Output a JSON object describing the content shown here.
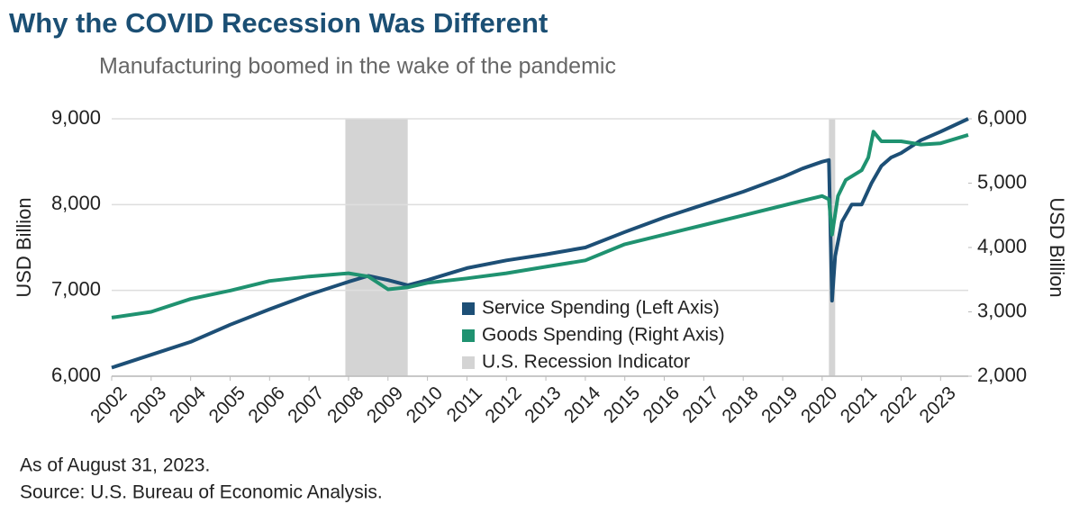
{
  "chart_data": {
    "type": "line",
    "title": "Why the COVID Recession Was Different",
    "subtitle": "Manufacturing boomed in the wake of the pandemic",
    "ylabel": "USD Billion",
    "y2label": "USD Billion",
    "xlim": [
      2002,
      2023.7
    ],
    "xticks": [
      2002,
      2003,
      2004,
      2005,
      2006,
      2007,
      2008,
      2009,
      2010,
      2011,
      2012,
      2013,
      2014,
      2015,
      2016,
      2017,
      2018,
      2019,
      2020,
      2021,
      2022,
      2023
    ],
    "ylim": [
      6000,
      9000
    ],
    "yticks": [
      {
        "value": 6000,
        "label": "6,000"
      },
      {
        "value": 7000,
        "label": "7,000"
      },
      {
        "value": 8000,
        "label": "8,000"
      },
      {
        "value": 9000,
        "label": "9,000"
      }
    ],
    "y2lim": [
      2000,
      6000
    ],
    "y2ticks": [
      {
        "value": 2000,
        "label": "2,000"
      },
      {
        "value": 3000,
        "label": "3,000"
      },
      {
        "value": 4000,
        "label": "4,000"
      },
      {
        "value": 5000,
        "label": "5,000"
      },
      {
        "value": 6000,
        "label": "6,000"
      }
    ],
    "grid": true,
    "series": [
      {
        "name": "Service Spending (Left Axis)",
        "color": "#1d4f76",
        "axis": "y",
        "x": [
          2002,
          2003,
          2004,
          2005,
          2006,
          2007,
          2008,
          2008.5,
          2009,
          2009.5,
          2010,
          2011,
          2012,
          2013,
          2014,
          2015,
          2016,
          2017,
          2018,
          2019,
          2019.5,
          2020,
          2020.17,
          2020.25,
          2020.33,
          2020.5,
          2020.75,
          2021,
          2021.25,
          2021.5,
          2021.75,
          2022,
          2022.5,
          2023,
          2023.7
        ],
        "values": [
          6100,
          6250,
          6400,
          6600,
          6780,
          6950,
          7100,
          7170,
          7120,
          7060,
          7120,
          7260,
          7350,
          7420,
          7500,
          7680,
          7850,
          8000,
          8150,
          8320,
          8420,
          8500,
          8520,
          6880,
          7400,
          7800,
          8000,
          8000,
          8250,
          8450,
          8550,
          8600,
          8750,
          8850,
          9000
        ]
      },
      {
        "name": "Goods Spending (Right Axis)",
        "color": "#1f9270",
        "axis": "y2",
        "x": [
          2002,
          2003,
          2004,
          2005,
          2006,
          2007,
          2008,
          2008.5,
          2009,
          2009.5,
          2010,
          2011,
          2012,
          2013,
          2014,
          2015,
          2016,
          2017,
          2018,
          2019,
          2020,
          2020.17,
          2020.25,
          2020.4,
          2020.6,
          2021,
          2021.17,
          2021.3,
          2021.5,
          2022,
          2022.5,
          2023,
          2023.7
        ],
        "values": [
          2910,
          3000,
          3200,
          3330,
          3480,
          3550,
          3600,
          3550,
          3350,
          3380,
          3450,
          3520,
          3600,
          3700,
          3800,
          4050,
          4200,
          4350,
          4500,
          4650,
          4800,
          4750,
          4200,
          4800,
          5050,
          5200,
          5400,
          5800,
          5650,
          5650,
          5600,
          5620,
          5750
        ]
      }
    ],
    "recession": {
      "name": "U.S. Recession Indicator",
      "color": "#d4d4d4",
      "periods": [
        [
          2007.92,
          2009.5
        ],
        [
          2020.17,
          2020.33
        ]
      ]
    },
    "notes": [
      "As of August 31, 2023.",
      "Source: U.S. Bureau of Economic Analysis."
    ]
  }
}
